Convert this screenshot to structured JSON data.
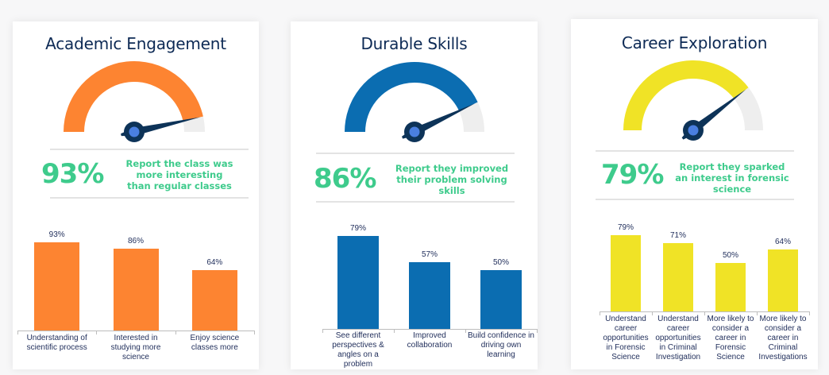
{
  "cards": [
    {
      "title": "Academic Engagement",
      "accent": "#fd8431",
      "gauge_pct": 93,
      "big_pct": "93%",
      "stat_lines": [
        "Report the class was",
        "more interesting",
        "than regular classes"
      ],
      "bars": [
        {
          "label_lines": [
            "Understanding of",
            "scientific process"
          ],
          "value": 93,
          "value_label": "93%"
        },
        {
          "label_lines": [
            "Interested in",
            "studying more",
            "science"
          ],
          "value": 86,
          "value_label": "86%"
        },
        {
          "label_lines": [
            "Enjoy science",
            "classes more"
          ],
          "value": 64,
          "value_label": "64%"
        }
      ]
    },
    {
      "title": "Durable Skills",
      "accent": "#0b6db1",
      "gauge_pct": 86,
      "big_pct": "86%",
      "stat_lines": [
        "Report  they improved",
        "their problem solving",
        "skills"
      ],
      "bars": [
        {
          "label_lines": [
            "See different",
            "perspectives &",
            "angles on a",
            "problem"
          ],
          "value": 79,
          "value_label": "79%"
        },
        {
          "label_lines": [
            "Improved",
            "collaboration"
          ],
          "value": 57,
          "value_label": "57%"
        },
        {
          "label_lines": [
            "Build confidence in",
            "driving own",
            "learning"
          ],
          "value": 50,
          "value_label": "50%"
        }
      ]
    },
    {
      "title": "Career Exploration",
      "accent": "#f0e326",
      "gauge_pct": 79,
      "big_pct": "79%",
      "stat_lines": [
        "Report they sparked",
        "an interest in forensic",
        "science"
      ],
      "bars": [
        {
          "label_lines": [
            "Understand",
            "career",
            "opportunities",
            "in Forensic",
            "Science"
          ],
          "value": 79,
          "value_label": "79%"
        },
        {
          "label_lines": [
            "Understand",
            "career",
            "opportunities",
            "in Criminal",
            "Investigation"
          ],
          "value": 71,
          "value_label": "71%"
        },
        {
          "label_lines": [
            "More likely to",
            "consider a",
            "career in",
            "Forensic",
            "Science"
          ],
          "value": 50,
          "value_label": "50%"
        },
        {
          "label_lines": [
            "More likely to",
            "consider a",
            "career in",
            "Criminal",
            "Investigations"
          ],
          "value": 64,
          "value_label": "64%"
        }
      ]
    }
  ],
  "colors": {
    "title": "#0d2a55",
    "stat_green": "#3ecb8c",
    "gauge_track": "#eeeeee",
    "needle": "#0d3358",
    "needle_dot": "#4a7fe0"
  },
  "chart_data": [
    {
      "type": "bar",
      "title": "Academic Engagement",
      "categories": [
        "Understanding of scientific process",
        "Interested in studying more science",
        "Enjoy science classes more"
      ],
      "values": [
        93,
        86,
        64
      ],
      "xlabel": "",
      "ylabel": "",
      "ylim": [
        0,
        100
      ],
      "gauge": {
        "value": 93,
        "label": "Report the class was more interesting than regular classes"
      }
    },
    {
      "type": "bar",
      "title": "Durable Skills",
      "categories": [
        "See different perspectives & angles on a problem",
        "Improved collaboration",
        "Build confidence in driving own learning"
      ],
      "values": [
        79,
        57,
        50
      ],
      "xlabel": "",
      "ylabel": "",
      "ylim": [
        0,
        100
      ],
      "gauge": {
        "value": 86,
        "label": "Report they improved their problem solving skills"
      }
    },
    {
      "type": "bar",
      "title": "Career Exploration",
      "categories": [
        "Understand career opportunities in Forensic Science",
        "Understand career opportunities in Criminal Investigation",
        "More likely to consider a career in Forensic Science",
        "More likely to consider a career in Criminal Investigations"
      ],
      "values": [
        79,
        71,
        50,
        64
      ],
      "xlabel": "",
      "ylabel": "",
      "ylim": [
        0,
        100
      ],
      "gauge": {
        "value": 79,
        "label": "Report they sparked an interest in forensic science"
      }
    }
  ]
}
